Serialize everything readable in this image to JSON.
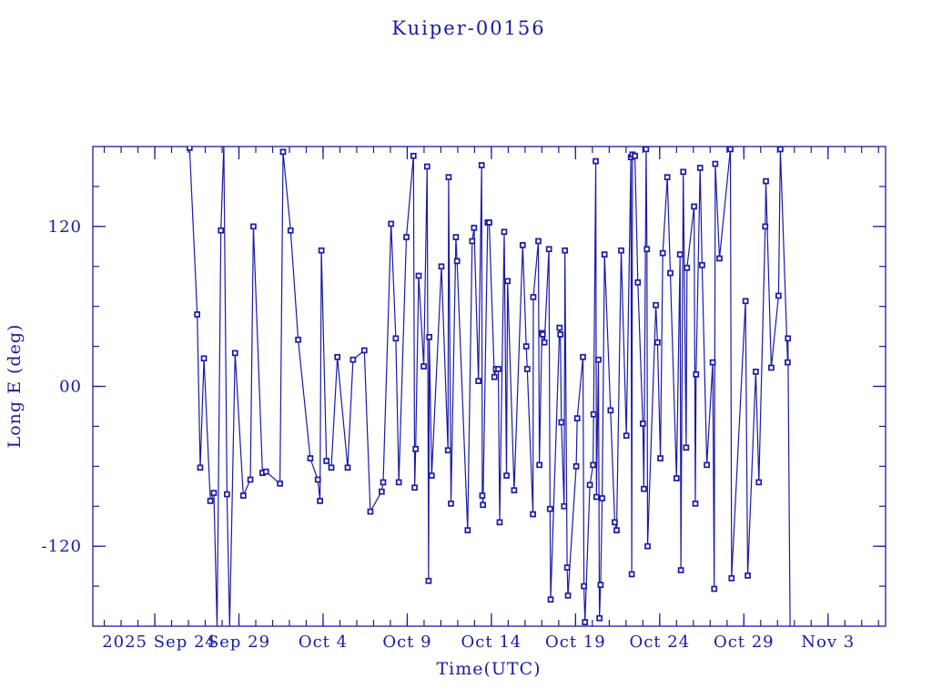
{
  "figure": {
    "title": "Kuiper-00156",
    "xlabel": "Time(UTC)",
    "ylabel": "Long E (deg)"
  },
  "chart_data": {
    "type": "line",
    "title": "Kuiper-00156",
    "xlabel": "Time(UTC)",
    "ylabel": "Long E (deg)",
    "x_unit": "days after 2025-09-24 00:00 UTC",
    "xlim": [
      -3.68,
      43.42
    ],
    "ylim": [
      -180,
      180
    ],
    "x_major_ticks": [
      [
        0,
        "2025 Sep 24"
      ],
      [
        5,
        "Sep 29"
      ],
      [
        10,
        "Oct 4"
      ],
      [
        15,
        "Oct 9"
      ],
      [
        20,
        "Oct 14"
      ],
      [
        25,
        "Oct 19"
      ],
      [
        30,
        "Oct 24"
      ],
      [
        35,
        "Oct 29"
      ],
      [
        40,
        "Nov 3"
      ]
    ],
    "x_minor_step_days": 1,
    "y_major_ticks": [
      [
        120,
        "120"
      ],
      [
        0,
        "00"
      ],
      [
        -120,
        "-120"
      ]
    ],
    "y_minor_step_deg": 30,
    "marker": "open-square",
    "line_color": "#1a1aa5",
    "text_color": "#1a1aa5",
    "background": "#ffffff",
    "legend": "none",
    "grid": "off",
    "points": [
      [
        2.07,
        179
      ],
      [
        2.52,
        54
      ],
      [
        2.7,
        -61
      ],
      [
        2.92,
        21
      ],
      [
        3.3,
        -86
      ],
      [
        3.51,
        -80
      ],
      [
        3.7,
        -181
      ],
      [
        3.93,
        117
      ],
      [
        4.1,
        181
      ],
      [
        4.29,
        -81
      ],
      [
        4.45,
        -181
      ],
      [
        4.77,
        25
      ],
      [
        5.26,
        -82
      ],
      [
        5.68,
        -70
      ],
      [
        5.86,
        120
      ],
      [
        6.4,
        -65
      ],
      [
        6.61,
        -64
      ],
      [
        7.44,
        -73
      ],
      [
        7.62,
        176
      ],
      [
        8.07,
        117
      ],
      [
        8.52,
        35
      ],
      [
        9.24,
        -54
      ],
      [
        9.69,
        -70
      ],
      [
        9.82,
        -86
      ],
      [
        9.9,
        102
      ],
      [
        10.2,
        -56
      ],
      [
        10.49,
        -61
      ],
      [
        10.85,
        22
      ],
      [
        11.46,
        -61
      ],
      [
        11.78,
        20
      ],
      [
        12.45,
        27
      ],
      [
        12.81,
        -94
      ],
      [
        13.48,
        -79
      ],
      [
        13.57,
        -72
      ],
      [
        14.04,
        122
      ],
      [
        14.32,
        36
      ],
      [
        14.5,
        -72
      ],
      [
        14.95,
        112
      ],
      [
        15.37,
        173
      ],
      [
        15.44,
        -76
      ],
      [
        15.5,
        -47
      ],
      [
        15.68,
        83
      ],
      [
        15.98,
        15
      ],
      [
        16.18,
        165
      ],
      [
        16.27,
        -146
      ],
      [
        16.31,
        37
      ],
      [
        16.45,
        -67
      ],
      [
        17.03,
        90
      ],
      [
        17.42,
        -48
      ],
      [
        17.46,
        157
      ],
      [
        17.6,
        -88
      ],
      [
        17.89,
        112
      ],
      [
        17.96,
        94
      ],
      [
        18.59,
        -108
      ],
      [
        18.86,
        109
      ],
      [
        18.97,
        119
      ],
      [
        19.23,
        4
      ],
      [
        19.42,
        166
      ],
      [
        19.46,
        -82
      ],
      [
        19.5,
        -89
      ],
      [
        19.78,
        123
      ],
      [
        19.87,
        123
      ],
      [
        20.18,
        7
      ],
      [
        20.27,
        13
      ],
      [
        20.41,
        13
      ],
      [
        20.49,
        -102
      ],
      [
        20.76,
        116
      ],
      [
        20.9,
        -67
      ],
      [
        20.96,
        79
      ],
      [
        21.35,
        -78
      ],
      [
        21.86,
        106
      ],
      [
        22.07,
        30
      ],
      [
        22.13,
        13
      ],
      [
        22.47,
        -96
      ],
      [
        22.49,
        67
      ],
      [
        22.79,
        109
      ],
      [
        22.85,
        -59
      ],
      [
        23.0,
        40
      ],
      [
        23.05,
        39
      ],
      [
        23.15,
        33
      ],
      [
        23.42,
        103
      ],
      [
        23.48,
        -92
      ],
      [
        23.52,
        -160
      ],
      [
        24.05,
        44
      ],
      [
        24.1,
        39
      ],
      [
        24.16,
        -27
      ],
      [
        24.32,
        -90
      ],
      [
        24.37,
        102
      ],
      [
        24.5,
        -136
      ],
      [
        24.55,
        -157
      ],
      [
        25.04,
        -60
      ],
      [
        25.1,
        -24
      ],
      [
        25.44,
        22
      ],
      [
        25.5,
        -150
      ],
      [
        25.56,
        -177
      ],
      [
        25.85,
        -74
      ],
      [
        26.04,
        -59
      ],
      [
        26.07,
        -21
      ],
      [
        26.2,
        169
      ],
      [
        26.24,
        -83
      ],
      [
        26.36,
        20
      ],
      [
        26.42,
        -174
      ],
      [
        26.49,
        -149
      ],
      [
        26.58,
        -84
      ],
      [
        26.72,
        99
      ],
      [
        27.08,
        -18
      ],
      [
        27.33,
        -102
      ],
      [
        27.44,
        -108
      ],
      [
        27.71,
        102
      ],
      [
        28.02,
        -37
      ],
      [
        28.29,
        172
      ],
      [
        28.34,
        -141
      ],
      [
        28.38,
        174
      ],
      [
        28.53,
        173
      ],
      [
        28.7,
        78
      ],
      [
        29.0,
        -28
      ],
      [
        29.06,
        -77
      ],
      [
        29.19,
        178
      ],
      [
        29.24,
        103
      ],
      [
        29.28,
        -120
      ],
      [
        29.77,
        61
      ],
      [
        29.87,
        33
      ],
      [
        30.04,
        -54
      ],
      [
        30.18,
        100
      ],
      [
        30.45,
        157
      ],
      [
        30.63,
        85
      ],
      [
        31.0,
        -69
      ],
      [
        31.21,
        99
      ],
      [
        31.26,
        -138
      ],
      [
        31.4,
        161
      ],
      [
        31.57,
        -46
      ],
      [
        31.62,
        89
      ],
      [
        32.04,
        135
      ],
      [
        32.12,
        -88
      ],
      [
        32.16,
        9
      ],
      [
        32.4,
        164
      ],
      [
        32.52,
        91
      ],
      [
        32.8,
        -59
      ],
      [
        33.15,
        18
      ],
      [
        33.24,
        -152
      ],
      [
        33.3,
        167
      ],
      [
        33.55,
        96
      ],
      [
        34.2,
        178
      ],
      [
        34.27,
        -144
      ],
      [
        35.1,
        64
      ],
      [
        35.23,
        -142
      ],
      [
        35.71,
        11
      ],
      [
        35.89,
        -72
      ],
      [
        36.27,
        120
      ],
      [
        36.31,
        154
      ],
      [
        36.63,
        14
      ],
      [
        37.06,
        68
      ],
      [
        37.17,
        178
      ],
      [
        37.6,
        18
      ],
      [
        37.62,
        36
      ],
      [
        37.75,
        -181
      ]
    ]
  }
}
